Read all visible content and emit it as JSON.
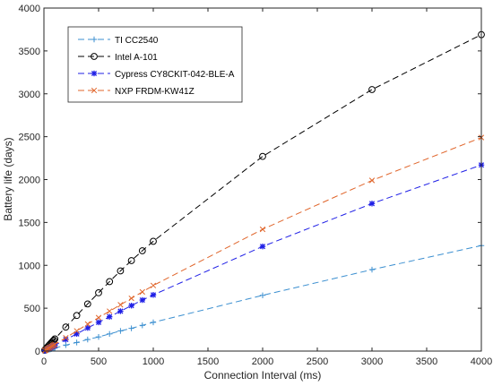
{
  "chart_data": {
    "type": "line",
    "xlabel": "Connection Interval (ms)",
    "ylabel": "Battery life (days)",
    "xlim": [
      0,
      4000
    ],
    "ylim": [
      0,
      4000
    ],
    "x_ticks": [
      "0",
      "500",
      "1000",
      "1500",
      "2000",
      "2500",
      "3000",
      "3500",
      "4000"
    ],
    "y_ticks": [
      "0",
      "500",
      "1000",
      "1500",
      "2000",
      "2500",
      "3000",
      "3500",
      "4000"
    ],
    "grid": false,
    "legend_position": "top-left",
    "series": [
      {
        "name": "TI CC2540",
        "color": "#3b8fd0",
        "marker": "plus",
        "x": [
          7.5,
          10,
          15,
          20,
          30,
          40,
          50,
          60,
          70,
          80,
          90,
          100,
          200,
          300,
          400,
          500,
          600,
          700,
          800,
          900,
          1000,
          2000,
          3000,
          4000
        ],
        "y": [
          3,
          4,
          6,
          8,
          11,
          15,
          18,
          21,
          25,
          28,
          32,
          35,
          70,
          100,
          135,
          165,
          200,
          235,
          265,
          300,
          335,
          650,
          950,
          1230
        ]
      },
      {
        "name": "Intel A-101",
        "color": "#000000",
        "marker": "circle",
        "x": [
          7.5,
          10,
          15,
          20,
          30,
          40,
          50,
          60,
          70,
          80,
          90,
          100,
          200,
          300,
          400,
          500,
          600,
          700,
          800,
          900,
          1000,
          2000,
          3000,
          4000
        ],
        "y": [
          11,
          15,
          22,
          30,
          44,
          58,
          72,
          86,
          100,
          114,
          128,
          142,
          280,
          415,
          550,
          680,
          810,
          935,
          1055,
          1170,
          1280,
          2270,
          3050,
          3690
        ]
      },
      {
        "name": "Cypress CY8CKIT-042-BLE-A",
        "color": "#1f1fe6",
        "marker": "asterisk",
        "x": [
          7.5,
          10,
          15,
          20,
          30,
          40,
          50,
          60,
          70,
          80,
          90,
          100,
          200,
          300,
          400,
          500,
          600,
          700,
          800,
          900,
          1000,
          2000,
          3000,
          4000
        ],
        "y": [
          5,
          7,
          10,
          14,
          20,
          27,
          33,
          40,
          47,
          53,
          60,
          67,
          135,
          200,
          270,
          335,
          400,
          465,
          530,
          595,
          655,
          1220,
          1720,
          2170
        ]
      },
      {
        "name": "NXP FRDM-KW41Z",
        "color": "#e0652b",
        "marker": "cross",
        "x": [
          7.5,
          10,
          15,
          20,
          30,
          40,
          50,
          60,
          70,
          80,
          90,
          100,
          200,
          300,
          400,
          500,
          600,
          700,
          800,
          900,
          1000,
          2000,
          3000,
          4000
        ],
        "y": [
          6,
          8,
          12,
          16,
          24,
          31,
          39,
          47,
          55,
          62,
          70,
          78,
          155,
          235,
          315,
          390,
          465,
          540,
          615,
          690,
          765,
          1420,
          1990,
          2490
        ]
      }
    ]
  }
}
